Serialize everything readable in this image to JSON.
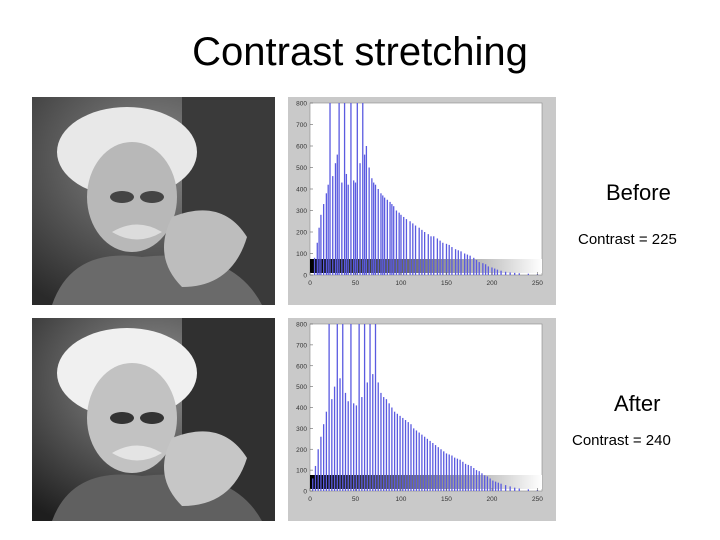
{
  "slide": {
    "title": "Contrast stretching",
    "before_label": "Before",
    "before_contrast": "Contrast = 225",
    "after_label": "After",
    "after_contrast": "Contrast = 240"
  },
  "colors": {
    "bars": "#5a5ae0",
    "frame": "#c9c9c9",
    "plot_bg": "#ffffff"
  },
  "chart_data": [
    {
      "type": "bar",
      "title": "",
      "xlabel": "",
      "ylabel": "",
      "xlim": [
        0,
        255
      ],
      "ylim": [
        0,
        800
      ],
      "xticks": [
        0,
        50,
        100,
        150,
        200,
        250
      ],
      "yticks": [
        0,
        100,
        200,
        300,
        400,
        500,
        600,
        700,
        800
      ],
      "grid": false,
      "x": [
        5,
        8,
        10,
        12,
        15,
        18,
        20,
        22,
        25,
        28,
        30,
        32,
        35,
        38,
        40,
        42,
        45,
        48,
        50,
        52,
        55,
        58,
        60,
        62,
        65,
        68,
        70,
        72,
        75,
        78,
        80,
        82,
        85,
        88,
        90,
        92,
        95,
        98,
        100,
        103,
        106,
        110,
        113,
        116,
        120,
        123,
        126,
        130,
        133,
        136,
        140,
        143,
        146,
        150,
        153,
        156,
        160,
        163,
        166,
        170,
        173,
        176,
        180,
        183,
        186,
        190,
        193,
        196,
        200,
        203,
        206,
        210,
        215,
        220,
        225,
        230,
        240,
        250
      ],
      "values": [
        80,
        150,
        220,
        280,
        330,
        380,
        420,
        800,
        460,
        520,
        560,
        800,
        430,
        800,
        470,
        420,
        800,
        440,
        430,
        800,
        520,
        800,
        560,
        600,
        500,
        450,
        430,
        420,
        400,
        380,
        370,
        360,
        350,
        340,
        330,
        320,
        300,
        290,
        280,
        270,
        260,
        250,
        240,
        230,
        220,
        210,
        200,
        190,
        180,
        180,
        170,
        160,
        150,
        145,
        140,
        130,
        120,
        115,
        110,
        100,
        95,
        90,
        80,
        70,
        60,
        55,
        50,
        40,
        35,
        30,
        25,
        20,
        15,
        12,
        10,
        8,
        6,
        4
      ]
    },
    {
      "type": "bar",
      "title": "",
      "xlabel": "",
      "ylabel": "",
      "xlim": [
        0,
        255
      ],
      "ylim": [
        0,
        800
      ],
      "xticks": [
        0,
        50,
        100,
        150,
        200,
        250
      ],
      "yticks": [
        0,
        100,
        200,
        300,
        400,
        500,
        600,
        700,
        800
      ],
      "grid": false,
      "x": [
        3,
        6,
        9,
        12,
        15,
        18,
        21,
        24,
        27,
        30,
        33,
        36,
        39,
        42,
        45,
        48,
        51,
        54,
        57,
        60,
        63,
        66,
        69,
        72,
        75,
        78,
        81,
        84,
        87,
        90,
        93,
        96,
        99,
        102,
        105,
        108,
        111,
        114,
        117,
        120,
        123,
        126,
        129,
        132,
        135,
        138,
        141,
        144,
        147,
        150,
        153,
        156,
        159,
        162,
        165,
        168,
        171,
        174,
        177,
        180,
        183,
        186,
        189,
        192,
        195,
        198,
        201,
        204,
        207,
        210,
        215,
        220,
        225,
        230,
        240,
        250
      ],
      "values": [
        60,
        120,
        200,
        260,
        320,
        380,
        800,
        440,
        500,
        800,
        540,
        800,
        470,
        430,
        800,
        420,
        410,
        800,
        450,
        800,
        520,
        800,
        560,
        800,
        520,
        470,
        450,
        440,
        420,
        400,
        380,
        370,
        360,
        350,
        340,
        330,
        320,
        300,
        290,
        280,
        270,
        260,
        250,
        240,
        230,
        220,
        210,
        200,
        190,
        180,
        175,
        170,
        160,
        155,
        150,
        140,
        130,
        125,
        120,
        110,
        100,
        95,
        85,
        75,
        70,
        60,
        50,
        45,
        40,
        35,
        28,
        22,
        16,
        12,
        8,
        5
      ]
    }
  ]
}
